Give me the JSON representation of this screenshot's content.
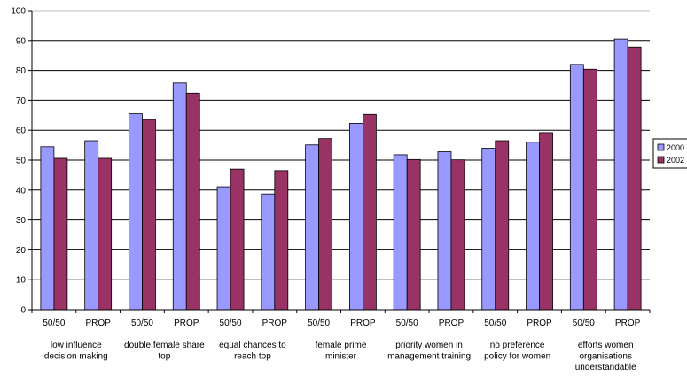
{
  "chart_data": {
    "type": "bar",
    "ylim": [
      0,
      100
    ],
    "yticks": [
      0,
      10,
      20,
      30,
      40,
      50,
      60,
      70,
      80,
      90,
      100
    ],
    "grid": true,
    "legend_position": "right",
    "categories": [
      "50/50",
      "PROP",
      "50/50",
      "PROP",
      "50/50",
      "PROP",
      "50/50",
      "PROP",
      "50/50",
      "PROP",
      "50/50",
      "PROP",
      "50/50",
      "PROP"
    ],
    "groups": [
      "low influence decision making",
      "double female share top",
      "equal chances to reach top",
      "female prime minister",
      "priority women in management training",
      "no preference policy for women",
      "efforts women organisations understandable"
    ],
    "series": [
      {
        "name": "2000",
        "color": "#9999ff",
        "values": [
          54.5,
          56.5,
          65.5,
          75.8,
          41.1,
          38.7,
          55.1,
          62.3,
          51.8,
          52.8,
          54.0,
          56.0,
          82.0,
          90.5
        ]
      },
      {
        "name": "2002",
        "color": "#993366",
        "values": [
          50.6,
          50.6,
          63.6,
          72.4,
          47.0,
          46.5,
          57.2,
          65.3,
          50.2,
          50.1,
          56.5,
          59.2,
          80.4,
          87.8
        ]
      }
    ]
  },
  "legend": {
    "items": [
      "2000",
      "2002"
    ]
  }
}
